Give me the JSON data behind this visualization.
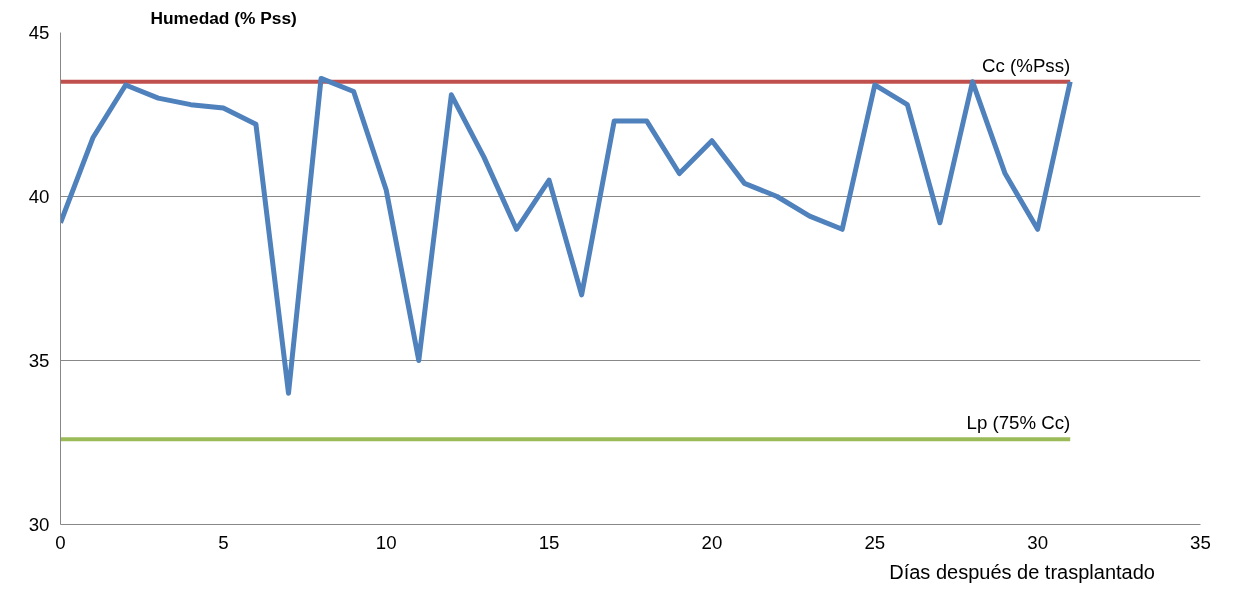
{
  "chart_data": {
    "type": "line",
    "ylabel": "Humedad (% Pss)",
    "xlabel": "Días después  de trasplantado",
    "x": [
      0,
      1,
      2,
      3,
      4,
      5,
      6,
      7,
      8,
      9,
      10,
      11,
      12,
      13,
      14,
      15,
      16,
      17,
      18,
      19,
      20,
      21,
      22,
      23,
      24,
      25,
      26,
      27,
      28,
      29,
      30,
      31
    ],
    "series": [
      {
        "color": "#4f81bd",
        "values": [
          39.2,
          41.8,
          43.4,
          43.0,
          42.8,
          42.7,
          42.2,
          34.0,
          43.6,
          43.2,
          40.2,
          35.0,
          43.1,
          41.2,
          39.0,
          40.5,
          37.0,
          42.3,
          42.3,
          40.7,
          41.7,
          40.4,
          40.0,
          39.4,
          39.0,
          43.4,
          42.8,
          39.2,
          43.5,
          40.7,
          39.0,
          43.5
        ]
      }
    ],
    "ref_lines": [
      {
        "axis": "y",
        "value": 43.5,
        "label": "Cc (%Pss)",
        "color": "#c0504d"
      },
      {
        "axis": "y",
        "value": 32.6,
        "label": "Lp (75% Cc)",
        "color": "#9bbb59"
      }
    ],
    "xlim": [
      0,
      35
    ],
    "ylim": [
      30,
      45
    ],
    "xticks": [
      0,
      5,
      10,
      15,
      20,
      25,
      30,
      35
    ],
    "yticks": [
      30,
      35,
      40,
      45
    ],
    "grid": "y",
    "marker": "none",
    "line_style": "solid"
  }
}
